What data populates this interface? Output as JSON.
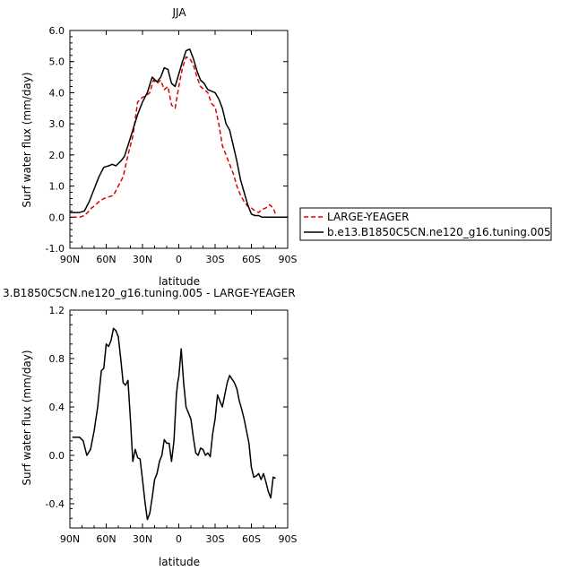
{
  "chart_data": [
    {
      "type": "line",
      "title": "JJA",
      "xlabel": "latitude",
      "ylabel": "Surf water flux (mm/day)",
      "xlim": [
        90,
        -90
      ],
      "ylim": [
        -1.0,
        6.0
      ],
      "x_ticks": [
        "90N",
        "60N",
        "30N",
        "0",
        "30S",
        "60S",
        "90S"
      ],
      "y_ticks": [
        "-1.0",
        "0.0",
        "1.0",
        "2.0",
        "3.0",
        "4.0",
        "5.0",
        "6.0"
      ],
      "legend_position": "right",
      "series": [
        {
          "name": "LARGE-YEAGER",
          "color": "#dd0000",
          "style": "dashed",
          "x": [
            88,
            82,
            78,
            74,
            72,
            70,
            66,
            62,
            58,
            54,
            50,
            46,
            42,
            38,
            34,
            30,
            27,
            24,
            21,
            18,
            15,
            12,
            9,
            6,
            3,
            0,
            -3,
            -6,
            -9,
            -12,
            -15,
            -18,
            -21,
            -24,
            -27,
            -30,
            -33,
            -36,
            -39,
            -42,
            -45,
            -48,
            -51,
            -54,
            -57,
            -60,
            -63,
            -66,
            -69,
            -72,
            -75,
            -78,
            -80
          ],
          "y": [
            0.0,
            0.0,
            0.05,
            0.2,
            0.3,
            0.35,
            0.5,
            0.6,
            0.65,
            0.7,
            1.0,
            1.3,
            2.0,
            2.6,
            3.7,
            3.85,
            3.9,
            4.0,
            4.4,
            4.3,
            4.4,
            4.1,
            4.2,
            3.6,
            3.5,
            4.2,
            4.8,
            5.15,
            5.1,
            4.9,
            4.5,
            4.2,
            4.1,
            4.0,
            3.65,
            3.55,
            3.0,
            2.3,
            2.0,
            1.7,
            1.4,
            1.0,
            0.7,
            0.5,
            0.35,
            0.3,
            0.2,
            0.15,
            0.25,
            0.3,
            0.4,
            0.3,
            0.1
          ]
        },
        {
          "name": "b.e13.B1850C5CN.ne120_g16.tuning.005",
          "color": "#000000",
          "style": "solid",
          "x": [
            90,
            85,
            82,
            78,
            74,
            70,
            66,
            62,
            58,
            55,
            52,
            48,
            45,
            42,
            38,
            34,
            30,
            26,
            22,
            18,
            15,
            12,
            9,
            6,
            3,
            0,
            -3,
            -6,
            -9,
            -12,
            -15,
            -18,
            -21,
            -24,
            -27,
            -30,
            -33,
            -36,
            -39,
            -42,
            -45,
            -48,
            -51,
            -54,
            -57,
            -60,
            -63,
            -66,
            -69,
            -72,
            -75,
            -80,
            -85,
            -90
          ],
          "y": [
            0.15,
            0.15,
            0.15,
            0.2,
            0.5,
            0.9,
            1.3,
            1.6,
            1.65,
            1.7,
            1.65,
            1.8,
            1.95,
            2.3,
            2.8,
            3.3,
            3.7,
            4.0,
            4.5,
            4.35,
            4.5,
            4.8,
            4.75,
            4.3,
            4.2,
            4.6,
            5.0,
            5.35,
            5.4,
            5.1,
            4.7,
            4.4,
            4.3,
            4.1,
            4.05,
            4.0,
            3.8,
            3.5,
            3.0,
            2.8,
            2.3,
            1.8,
            1.2,
            0.8,
            0.4,
            0.1,
            0.05,
            0.05,
            0.0,
            0.0,
            0.0,
            0.0,
            0.0,
            0.0
          ]
        }
      ]
    },
    {
      "type": "line",
      "title": "3.B1850C5CN.ne120_g16.tuning.005 - LARGE-YEAGER",
      "xlabel": "latitude",
      "ylabel": "Surf water flux (mm/day)",
      "xlim": [
        90,
        -90
      ],
      "ylim": [
        -0.6,
        1.2
      ],
      "x_ticks": [
        "90N",
        "60N",
        "30N",
        "0",
        "30S",
        "60S",
        "90S"
      ],
      "y_ticks": [
        "-0.4",
        "0.0",
        "0.4",
        "0.8",
        "1.2"
      ],
      "series": [
        {
          "color": "#000000",
          "style": "solid",
          "x": [
            88,
            82,
            79,
            76,
            73,
            70,
            67,
            64,
            62,
            60,
            58,
            56,
            54,
            52,
            50,
            48,
            46,
            44,
            42,
            40,
            38,
            36,
            34,
            32,
            30,
            28,
            26,
            24,
            22,
            20,
            18,
            16,
            14,
            12,
            10,
            8,
            6,
            4,
            2,
            1,
            0,
            -2,
            -4,
            -6,
            -8,
            -10,
            -12,
            -14,
            -16,
            -18,
            -20,
            -22,
            -24,
            -26,
            -28,
            -30,
            -32,
            -34,
            -36,
            -38,
            -40,
            -42,
            -44,
            -46,
            -48,
            -50,
            -52,
            -54,
            -56,
            -58,
            -60,
            -62,
            -64,
            -66,
            -68,
            -70,
            -72,
            -74,
            -76,
            -78,
            -80
          ],
          "y": [
            0.15,
            0.15,
            0.12,
            0.0,
            0.05,
            0.2,
            0.4,
            0.7,
            0.72,
            0.92,
            0.9,
            0.95,
            1.05,
            1.03,
            0.98,
            0.8,
            0.6,
            0.58,
            0.62,
            0.3,
            -0.05,
            0.05,
            -0.02,
            -0.03,
            -0.2,
            -0.38,
            -0.53,
            -0.48,
            -0.35,
            -0.2,
            -0.15,
            -0.05,
            0.0,
            0.13,
            0.1,
            0.1,
            -0.05,
            0.12,
            0.5,
            0.6,
            0.65,
            0.88,
            0.6,
            0.4,
            0.35,
            0.3,
            0.15,
            0.02,
            0.0,
            0.06,
            0.05,
            0.0,
            0.02,
            -0.01,
            0.18,
            0.3,
            0.5,
            0.45,
            0.4,
            0.5,
            0.6,
            0.66,
            0.63,
            0.6,
            0.55,
            0.45,
            0.38,
            0.3,
            0.2,
            0.1,
            -0.1,
            -0.18,
            -0.17,
            -0.15,
            -0.2,
            -0.15,
            -0.22,
            -0.3,
            -0.35,
            -0.18,
            -0.19
          ]
        }
      ]
    }
  ]
}
